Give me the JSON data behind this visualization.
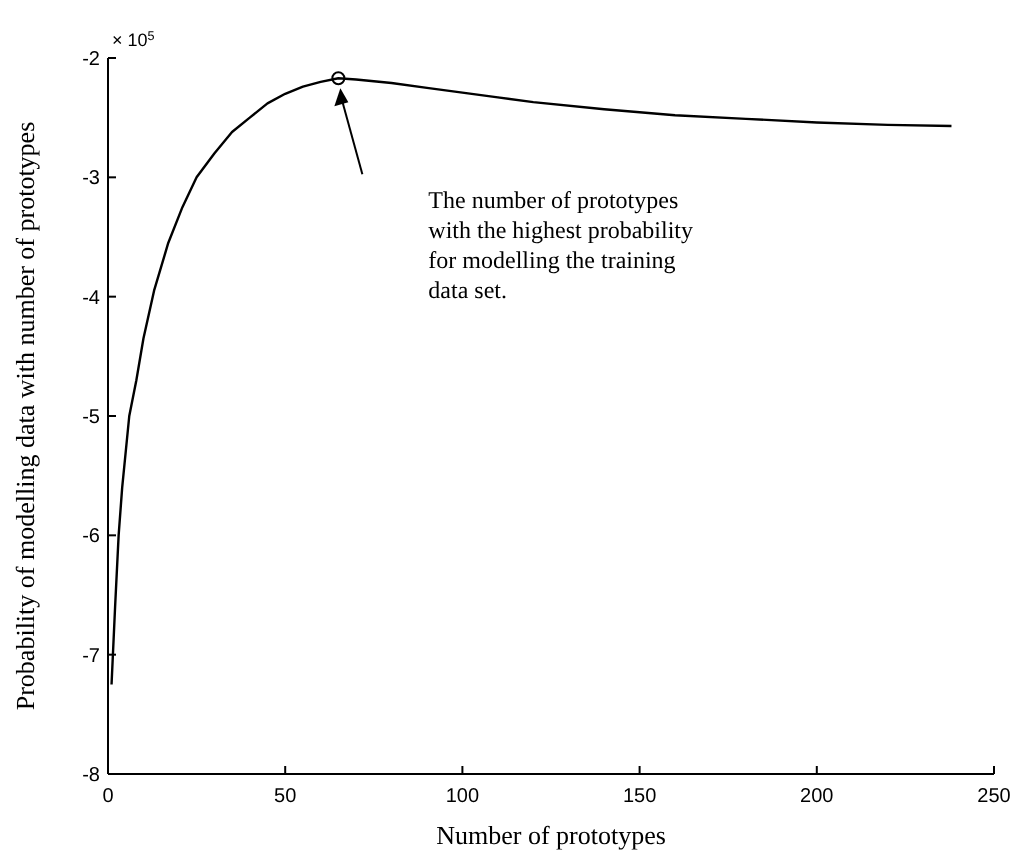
{
  "chart_data": {
    "type": "line",
    "xlabel": "Number of prototypes",
    "ylabel": "Probability of modelling data with number of prototypes",
    "annotations": [
      "× 10$^{5}$",
      "The number of prototypes\nwith the highest probability\nfor modelling the training\ndata set."
    ],
    "series": [
      {
        "color": "#000000",
        "marker": "none",
        "x": [
          1,
          2,
          3,
          4,
          6,
          8,
          10,
          13,
          17,
          21,
          25,
          30,
          35,
          40,
          45,
          50,
          55,
          60,
          65,
          70,
          80,
          90,
          100,
          110,
          120,
          140,
          160,
          180,
          200,
          220,
          238
        ],
        "values": [
          -7.25,
          -6.6,
          -6.0,
          -5.6,
          -5.0,
          -4.7,
          -4.35,
          -3.95,
          -3.55,
          -3.25,
          -3.0,
          -2.8,
          -2.62,
          -2.5,
          -2.38,
          -2.3,
          -2.24,
          -2.2,
          -2.17,
          -2.18,
          -2.21,
          -2.25,
          -2.29,
          -2.33,
          -2.37,
          -2.43,
          -2.48,
          -2.51,
          -2.54,
          -2.56,
          -2.57
        ]
      },
      {
        "type": "scatter",
        "color": "#000000",
        "marker": "circle",
        "x": [
          65
        ],
        "values": [
          -2.17
        ]
      }
    ],
    "xlim": [
      0,
      250
    ],
    "xticks": [
      0,
      50,
      100,
      150,
      200,
      250
    ],
    "ylim": [
      -8,
      -2
    ],
    "yticks": [
      -8,
      -7,
      -6,
      -5,
      -4,
      -3,
      -2
    ],
    "grid": false
  }
}
